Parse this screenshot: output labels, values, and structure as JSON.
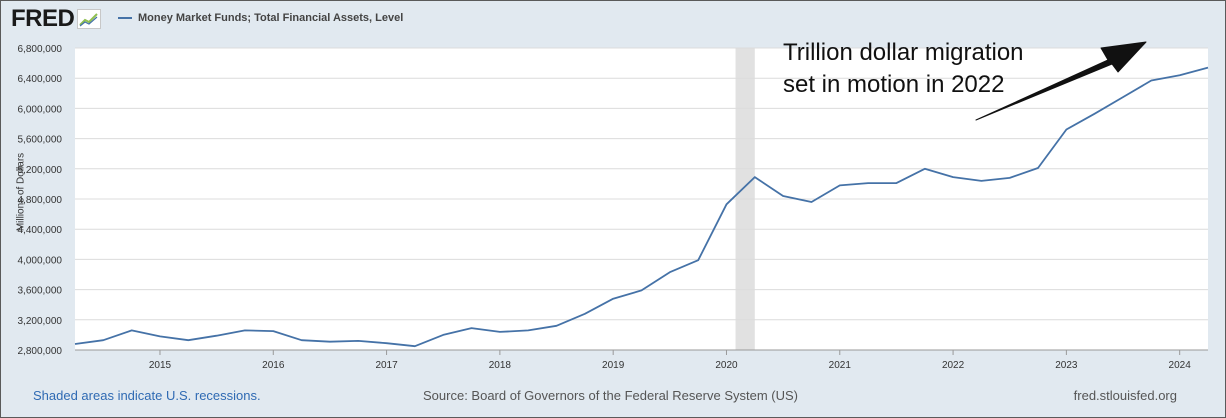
{
  "header": {
    "logo_text": "FRED",
    "logo_icon": "chart-line-icon",
    "legend_label": "Money Market Funds; Total Financial Assets, Level"
  },
  "footer": {
    "recession_note": "Shaded areas indicate U.S. recessions.",
    "source": "Source: Board of Governors of the Federal Reserve System (US)",
    "site": "fred.stlouisfed.org"
  },
  "colors": {
    "series": "#4572a7",
    "recession": "#e1e1e1",
    "gridline": "#dcdcdc",
    "background": "#e1e9f0",
    "link": "#2f6ab3"
  },
  "chart_data": {
    "type": "line",
    "ylabel": "Millions of Dollars",
    "ylim": [
      2800000,
      6800000
    ],
    "xlim": [
      2014.25,
      2024.25
    ],
    "grid": "horizontal",
    "yticks": [
      "6,800,000",
      "6,400,000",
      "6,000,000",
      "5,600,000",
      "5,200,000",
      "4,800,000",
      "4,400,000",
      "4,000,000",
      "3,600,000",
      "3,200,000",
      "2,800,000"
    ],
    "xticks": [
      "2015",
      "2016",
      "2017",
      "2018",
      "2019",
      "2020",
      "2021",
      "2022",
      "2023",
      "2024"
    ],
    "recessions": [
      {
        "start": 2020.08,
        "end": 2020.25
      }
    ],
    "series": [
      {
        "x": [
          2014.25,
          2014.5,
          2014.75,
          2015.0,
          2015.25,
          2015.5,
          2015.75,
          2016.0,
          2016.25,
          2016.5,
          2016.75,
          2017.0,
          2017.25,
          2017.5,
          2017.75,
          2018.0,
          2018.25,
          2018.5,
          2018.75,
          2019.0,
          2019.25,
          2019.5,
          2019.75,
          2020.0,
          2020.25,
          2020.5,
          2020.75,
          2021.0,
          2021.25,
          2021.5,
          2021.75,
          2022.0,
          2022.25,
          2022.5,
          2022.75,
          2023.0,
          2023.25,
          2023.5,
          2023.75,
          2024.0,
          2024.25
        ],
        "values": [
          2880000,
          2930000,
          3060000,
          2980000,
          2930000,
          2990000,
          3060000,
          3050000,
          2930000,
          2910000,
          2920000,
          2890000,
          2850000,
          3000000,
          3090000,
          3040000,
          3060000,
          3120000,
          3280000,
          3480000,
          3590000,
          3830000,
          3990000,
          4730000,
          5090000,
          4840000,
          4760000,
          4980000,
          5010000,
          5010000,
          5200000,
          5090000,
          5040000,
          5080000,
          5210000,
          5720000,
          5930000,
          6150000,
          6370000,
          6440000,
          6540000
        ]
      }
    ],
    "annotation": [
      "Trillion dollar migration",
      "set in motion in 2022"
    ]
  }
}
